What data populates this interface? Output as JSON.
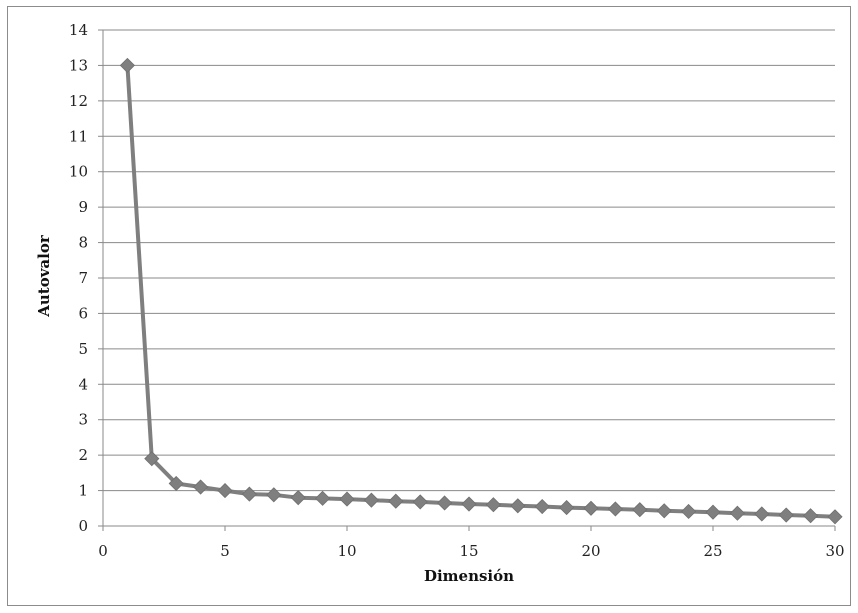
{
  "chart_data": {
    "type": "line",
    "title": "",
    "xlabel": "Dimensión",
    "ylabel": "Autovalor",
    "xlim": [
      0,
      30
    ],
    "ylim": [
      0,
      14
    ],
    "x_ticks": [
      0,
      5,
      10,
      15,
      20,
      25,
      30
    ],
    "y_ticks": [
      0,
      1,
      2,
      3,
      4,
      5,
      6,
      7,
      8,
      9,
      10,
      11,
      12,
      13,
      14
    ],
    "grid": "horizontal",
    "legend": "none",
    "marker": "diamond",
    "colors": {
      "series": "#7f7f7f",
      "grid": "#8a8a8a",
      "frame": "#8c8c8c"
    },
    "series": [
      {
        "x": [
          1,
          2,
          3,
          4,
          5,
          6,
          7,
          8,
          9,
          10,
          11,
          12,
          13,
          14,
          15,
          16,
          17,
          18,
          19,
          20,
          21,
          22,
          23,
          24,
          25,
          26,
          27,
          28,
          29,
          30
        ],
        "values": [
          13,
          1.9,
          1.2,
          1.1,
          1.0,
          0.9,
          0.88,
          0.8,
          0.78,
          0.76,
          0.73,
          0.7,
          0.68,
          0.65,
          0.62,
          0.6,
          0.57,
          0.55,
          0.52,
          0.5,
          0.48,
          0.46,
          0.43,
          0.41,
          0.39,
          0.36,
          0.34,
          0.31,
          0.29,
          0.26
        ]
      }
    ]
  }
}
